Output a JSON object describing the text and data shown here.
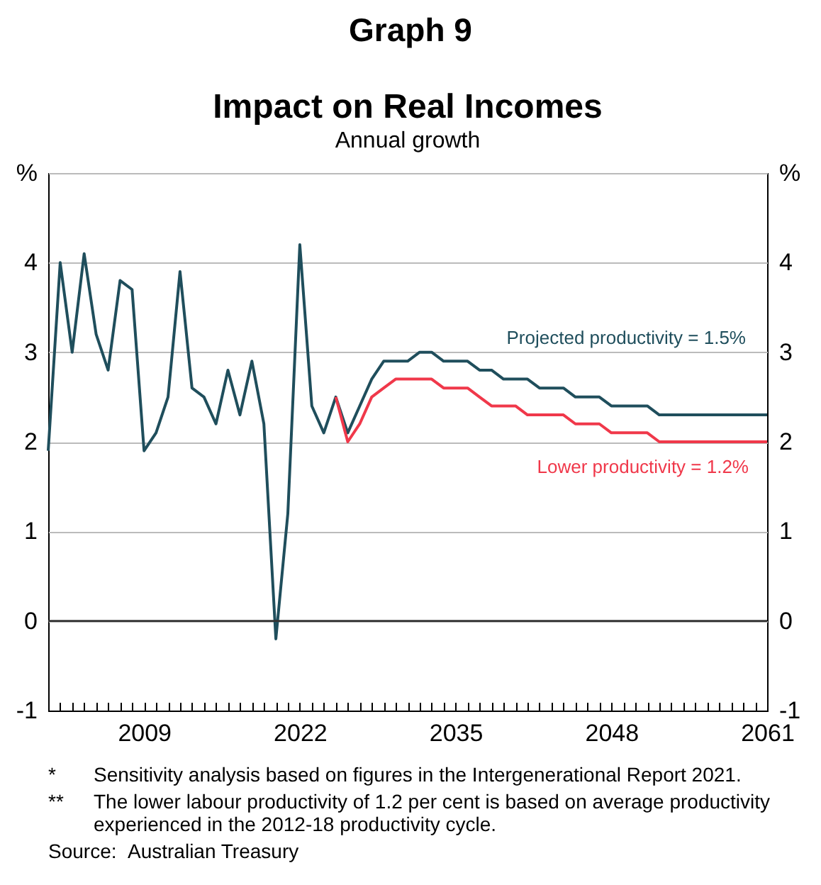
{
  "chart_data": {
    "type": "line",
    "title": "Impact on Real Incomes",
    "subtitle": "Annual growth",
    "annotations": [
      "Graph 9",
      "* Sensitivity analysis based on figures in the Intergenerational Report 2021.",
      "** The lower labour productivity of 1.2 per cent is based on average productivity experienced in the 2012-18 productivity cycle.",
      "Source: Australian Treasury"
    ],
    "series": [
      {
        "name": "Projected productivity = 1.5%",
        "color": "#1f4e5c",
        "x": [
          2001,
          2002,
          2003,
          2004,
          2005,
          2006,
          2007,
          2008,
          2009,
          2010,
          2011,
          2012,
          2013,
          2014,
          2015,
          2016,
          2017,
          2018,
          2019,
          2020,
          2021,
          2022,
          2023,
          2024,
          2025,
          2026,
          2027,
          2028,
          2029,
          2030,
          2031,
          2032,
          2033,
          2034,
          2035,
          2036,
          2037,
          2038,
          2039,
          2040,
          2041,
          2042,
          2043,
          2044,
          2045,
          2046,
          2047,
          2048,
          2049,
          2050,
          2051,
          2052,
          2053,
          2054,
          2055,
          2056,
          2057,
          2058,
          2059,
          2060,
          2061
        ],
        "values": [
          1.9,
          4.0,
          3.0,
          4.1,
          3.2,
          2.8,
          3.8,
          3.7,
          1.9,
          2.1,
          2.5,
          3.9,
          2.6,
          2.5,
          2.2,
          2.8,
          2.3,
          2.9,
          2.2,
          -0.2,
          1.2,
          4.2,
          2.4,
          2.1,
          2.5,
          2.1,
          2.4,
          2.7,
          2.9,
          2.9,
          2.9,
          3.0,
          3.0,
          2.9,
          2.9,
          2.9,
          2.8,
          2.8,
          2.7,
          2.7,
          2.7,
          2.6,
          2.6,
          2.6,
          2.5,
          2.5,
          2.5,
          2.4,
          2.4,
          2.4,
          2.4,
          2.3,
          2.3,
          2.3,
          2.3,
          2.3,
          2.3,
          2.3,
          2.3,
          2.3,
          2.3
        ]
      },
      {
        "name": "Lower productivity = 1.2%",
        "color": "#f0384a",
        "x": [
          2025,
          2026,
          2027,
          2028,
          2029,
          2030,
          2031,
          2032,
          2033,
          2034,
          2035,
          2036,
          2037,
          2038,
          2039,
          2040,
          2041,
          2042,
          2043,
          2044,
          2045,
          2046,
          2047,
          2048,
          2049,
          2050,
          2051,
          2052,
          2053,
          2054,
          2055,
          2056,
          2057,
          2058,
          2059,
          2060,
          2061
        ],
        "values": [
          2.5,
          2.0,
          2.2,
          2.5,
          2.6,
          2.7,
          2.7,
          2.7,
          2.7,
          2.6,
          2.6,
          2.6,
          2.5,
          2.4,
          2.4,
          2.4,
          2.3,
          2.3,
          2.3,
          2.3,
          2.2,
          2.2,
          2.2,
          2.1,
          2.1,
          2.1,
          2.1,
          2.0,
          2.0,
          2.0,
          2.0,
          2.0,
          2.0,
          2.0,
          2.0,
          2.0,
          2.0
        ]
      }
    ],
    "xlim": [
      2001,
      2061
    ],
    "xticks": [
      {
        "value": 2002,
        "label": null
      },
      {
        "value": 2003,
        "label": null
      },
      {
        "value": 2004,
        "label": null
      },
      {
        "value": 2005,
        "label": null
      },
      {
        "value": 2006,
        "label": null
      },
      {
        "value": 2007,
        "label": null
      },
      {
        "value": 2008,
        "label": null
      },
      2009,
      {
        "value": 2010,
        "label": null
      },
      {
        "value": 2011,
        "label": null
      },
      {
        "value": 2012,
        "label": null
      },
      {
        "value": 2013,
        "label": null
      },
      {
        "value": 2014,
        "label": null
      },
      {
        "value": 2015,
        "label": null
      },
      {
        "value": 2016,
        "label": null
      },
      {
        "value": 2017,
        "label": null
      },
      {
        "value": 2018,
        "label": null
      },
      {
        "value": 2019,
        "label": null
      },
      {
        "value": 2020,
        "label": null
      },
      {
        "value": 2021,
        "label": null
      },
      2022,
      {
        "value": 2023,
        "label": null
      },
      {
        "value": 2024,
        "label": null
      },
      {
        "value": 2025,
        "label": null
      },
      {
        "value": 2026,
        "label": null
      },
      {
        "value": 2027,
        "label": null
      },
      {
        "value": 2028,
        "label": null
      },
      {
        "value": 2029,
        "label": null
      },
      {
        "value": 2030,
        "label": null
      },
      {
        "value": 2031,
        "label": null
      },
      {
        "value": 2032,
        "label": null
      },
      {
        "value": 2033,
        "label": null
      },
      {
        "value": 2034,
        "label": null
      },
      2035,
      {
        "value": 2036,
        "label": null
      },
      {
        "value": 2037,
        "label": null
      },
      {
        "value": 2038,
        "label": null
      },
      {
        "value": 2039,
        "label": null
      },
      {
        "value": 2040,
        "label": null
      },
      {
        "value": 2041,
        "label": null
      },
      {
        "value": 2042,
        "label": null
      },
      {
        "value": 2043,
        "label": null
      },
      {
        "value": 2044,
        "label": null
      },
      {
        "value": 2045,
        "label": null
      },
      {
        "value": 2046,
        "label": null
      },
      {
        "value": 2047,
        "label": null
      },
      2048,
      {
        "value": 2049,
        "label": null
      },
      {
        "value": 2050,
        "label": null
      },
      {
        "value": 2051,
        "label": null
      },
      {
        "value": 2052,
        "label": null
      },
      {
        "value": 2053,
        "label": null
      },
      {
        "value": 2054,
        "label": null
      },
      {
        "value": 2055,
        "label": null
      },
      {
        "value": 2056,
        "label": null
      },
      {
        "value": 2057,
        "label": null
      },
      {
        "value": 2058,
        "label": null
      },
      {
        "value": 2059,
        "label": null
      },
      {
        "value": 2060,
        "label": null
      },
      2061
    ],
    "ylim": [
      -1,
      5
    ],
    "yticks": [
      -1,
      0,
      1,
      2,
      3,
      4,
      {
        "value": 5,
        "label": "%"
      }
    ],
    "y2lim": [
      -1,
      5
    ],
    "y2ticks": [
      -1,
      0,
      1,
      2,
      3,
      4,
      {
        "value": 5,
        "label": "%"
      }
    ],
    "ref_lines": [
      {
        "axis": "y",
        "value": 0,
        "color": "#333333"
      }
    ],
    "grid": "y",
    "legend": false,
    "marker": "none",
    "line_style": "solid"
  }
}
